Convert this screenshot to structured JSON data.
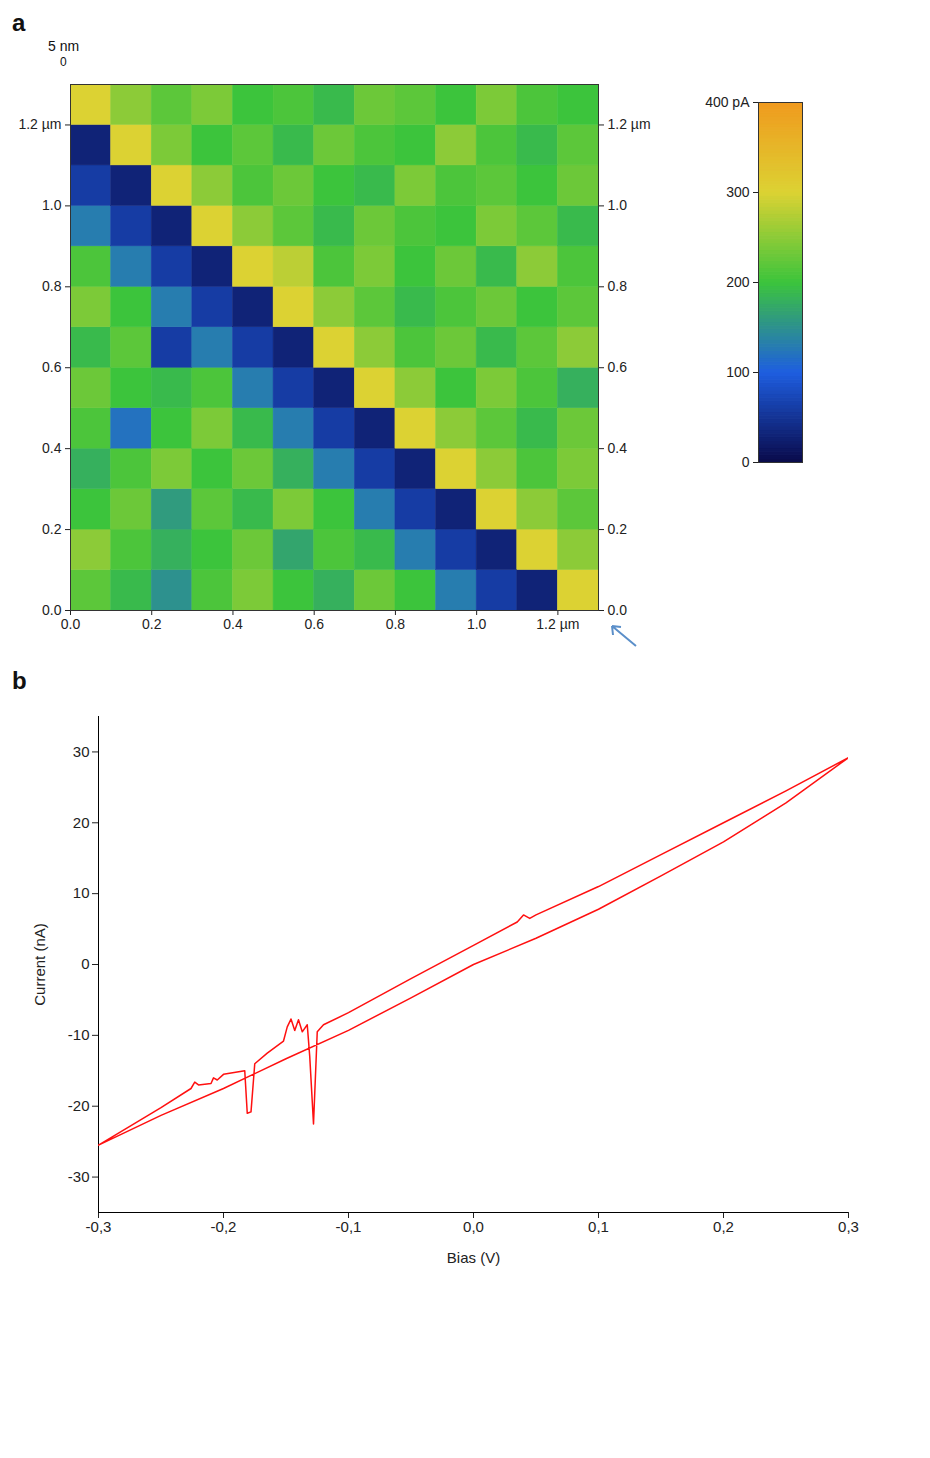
{
  "chart_data": [
    {
      "type": "heatmap",
      "panel_label": "a",
      "z_label": "5 nm",
      "z_ticks": [
        0
      ],
      "x_edges": [
        0,
        0.1,
        0.2,
        0.3,
        0.4,
        0.5,
        0.6,
        0.7,
        0.8,
        0.9,
        1.0,
        1.1,
        1.2,
        1.3
      ],
      "y_edges": [
        0,
        0.1,
        0.2,
        0.3,
        0.4,
        0.5,
        0.6,
        0.7,
        0.8,
        0.9,
        1.0,
        1.1,
        1.2,
        1.3
      ],
      "cells": [
        [
          220,
          190,
          150,
          210,
          240,
          200,
          180,
          230,
          200,
          130,
          60,
          30,
          300
        ],
        [
          250,
          210,
          180,
          200,
          230,
          170,
          210,
          190,
          130,
          60,
          30,
          300,
          250
        ],
        [
          200,
          230,
          160,
          220,
          190,
          240,
          200,
          130,
          60,
          30,
          300,
          250,
          220
        ],
        [
          180,
          210,
          240,
          200,
          230,
          180,
          130,
          60,
          30,
          300,
          250,
          210,
          240
        ],
        [
          210,
          120,
          200,
          240,
          190,
          130,
          60,
          30,
          300,
          250,
          220,
          190,
          230
        ],
        [
          230,
          200,
          190,
          210,
          130,
          60,
          30,
          300,
          250,
          200,
          240,
          210,
          180
        ],
        [
          190,
          220,
          60,
          130,
          60,
          30,
          300,
          250,
          210,
          230,
          190,
          220,
          250
        ],
        [
          240,
          200,
          130,
          60,
          30,
          300,
          250,
          220,
          190,
          210,
          230,
          200,
          220
        ],
        [
          210,
          130,
          60,
          30,
          300,
          280,
          210,
          240,
          200,
          230,
          190,
          250,
          210
        ],
        [
          130,
          60,
          30,
          300,
          250,
          220,
          190,
          230,
          210,
          200,
          240,
          220,
          190
        ],
        [
          60,
          30,
          300,
          250,
          210,
          230,
          200,
          190,
          240,
          210,
          220,
          200,
          230
        ],
        [
          30,
          300,
          240,
          200,
          220,
          190,
          230,
          210,
          200,
          250,
          210,
          190,
          220
        ],
        [
          300,
          250,
          220,
          240,
          200,
          210,
          190,
          230,
          220,
          200,
          240,
          210,
          200
        ]
      ],
      "xlim": [
        0,
        1.3
      ],
      "ylim": [
        0,
        1.3
      ],
      "xticks": [
        {
          "value": 0,
          "label": "0.0"
        },
        {
          "value": 0.2,
          "label": "0.2"
        },
        {
          "value": 0.4,
          "label": "0.4"
        },
        {
          "value": 0.6,
          "label": "0.6"
        },
        {
          "value": 0.8,
          "label": "0.8"
        },
        {
          "value": 1.0,
          "label": "1.0"
        },
        {
          "value": 1.2,
          "label": "1.2 µm"
        }
      ],
      "yticks": [
        {
          "value": 0,
          "label": "0.0"
        },
        {
          "value": 0.2,
          "label": "0.2"
        },
        {
          "value": 0.4,
          "label": "0.4"
        },
        {
          "value": 0.6,
          "label": "0.6"
        },
        {
          "value": 0.8,
          "label": "0.8"
        },
        {
          "value": 1.0,
          "label": "1.0"
        },
        {
          "value": 1.2,
          "label": "1.2 µm"
        }
      ],
      "colorbar": {
        "range": [
          0,
          400
        ],
        "ticks": [
          0,
          100,
          200,
          300,
          {
            "value": 400,
            "label": "400 pA"
          }
        ],
        "colors": [
          "#0a0a4a",
          "#1e5ee0",
          "#3cc43c",
          "#dcd233",
          "#f09a1e"
        ]
      }
    },
    {
      "type": "line",
      "panel_label": "b",
      "xlabel": "Bias (V)",
      "ylabel": "Current (nA)",
      "color": "#ff1010",
      "x": [
        -0.3,
        -0.25,
        -0.2,
        -0.15,
        -0.1,
        -0.05,
        0,
        0.05,
        0.1,
        0.15,
        0.2,
        0.25,
        0.3,
        0.25,
        0.2,
        0.15,
        0.1,
        0.05,
        0.045,
        0.04,
        0.035,
        0,
        -0.05,
        -0.1,
        -0.12,
        -0.125,
        -0.128,
        -0.131,
        -0.133,
        -0.137,
        -0.14,
        -0.143,
        -0.146,
        -0.149,
        -0.152,
        -0.165,
        -0.175,
        -0.178,
        -0.181,
        -0.183,
        -0.2,
        -0.205,
        -0.208,
        -0.21,
        -0.22,
        -0.223,
        -0.226,
        -0.25,
        -0.3
      ],
      "values": [
        -25.5,
        -21.3,
        -17.5,
        -13.3,
        -9.3,
        -4.7,
        0,
        3.7,
        7.8,
        12.5,
        17.3,
        22.8,
        29.2,
        24.5,
        20,
        15.5,
        11,
        7,
        6.5,
        7,
        6,
        2.7,
        -2,
        -6.8,
        -8.5,
        -9.5,
        -22.5,
        -13,
        -8.5,
        -9.5,
        -7.8,
        -9.3,
        -7.7,
        -8.8,
        -10.8,
        -12.5,
        -14,
        -20.8,
        -21,
        -15,
        -15.5,
        -16.3,
        -16,
        -16.8,
        -17,
        -16.6,
        -17.5,
        -20.2,
        -25.5
      ],
      "xlim": [
        -0.3,
        0.3
      ],
      "ylim": [
        -35,
        35
      ],
      "xticks": [
        {
          "value": -0.3,
          "label": "-0,3"
        },
        {
          "value": -0.2,
          "label": "-0,2"
        },
        {
          "value": -0.1,
          "label": "-0,1"
        },
        {
          "value": 0,
          "label": "0,0"
        },
        {
          "value": 0.1,
          "label": "0,1"
        },
        {
          "value": 0.2,
          "label": "0,2"
        },
        {
          "value": 0.3,
          "label": "0,3"
        }
      ],
      "yticks": [
        -30,
        -20,
        -10,
        0,
        10,
        20,
        30
      ],
      "grid": false
    }
  ]
}
